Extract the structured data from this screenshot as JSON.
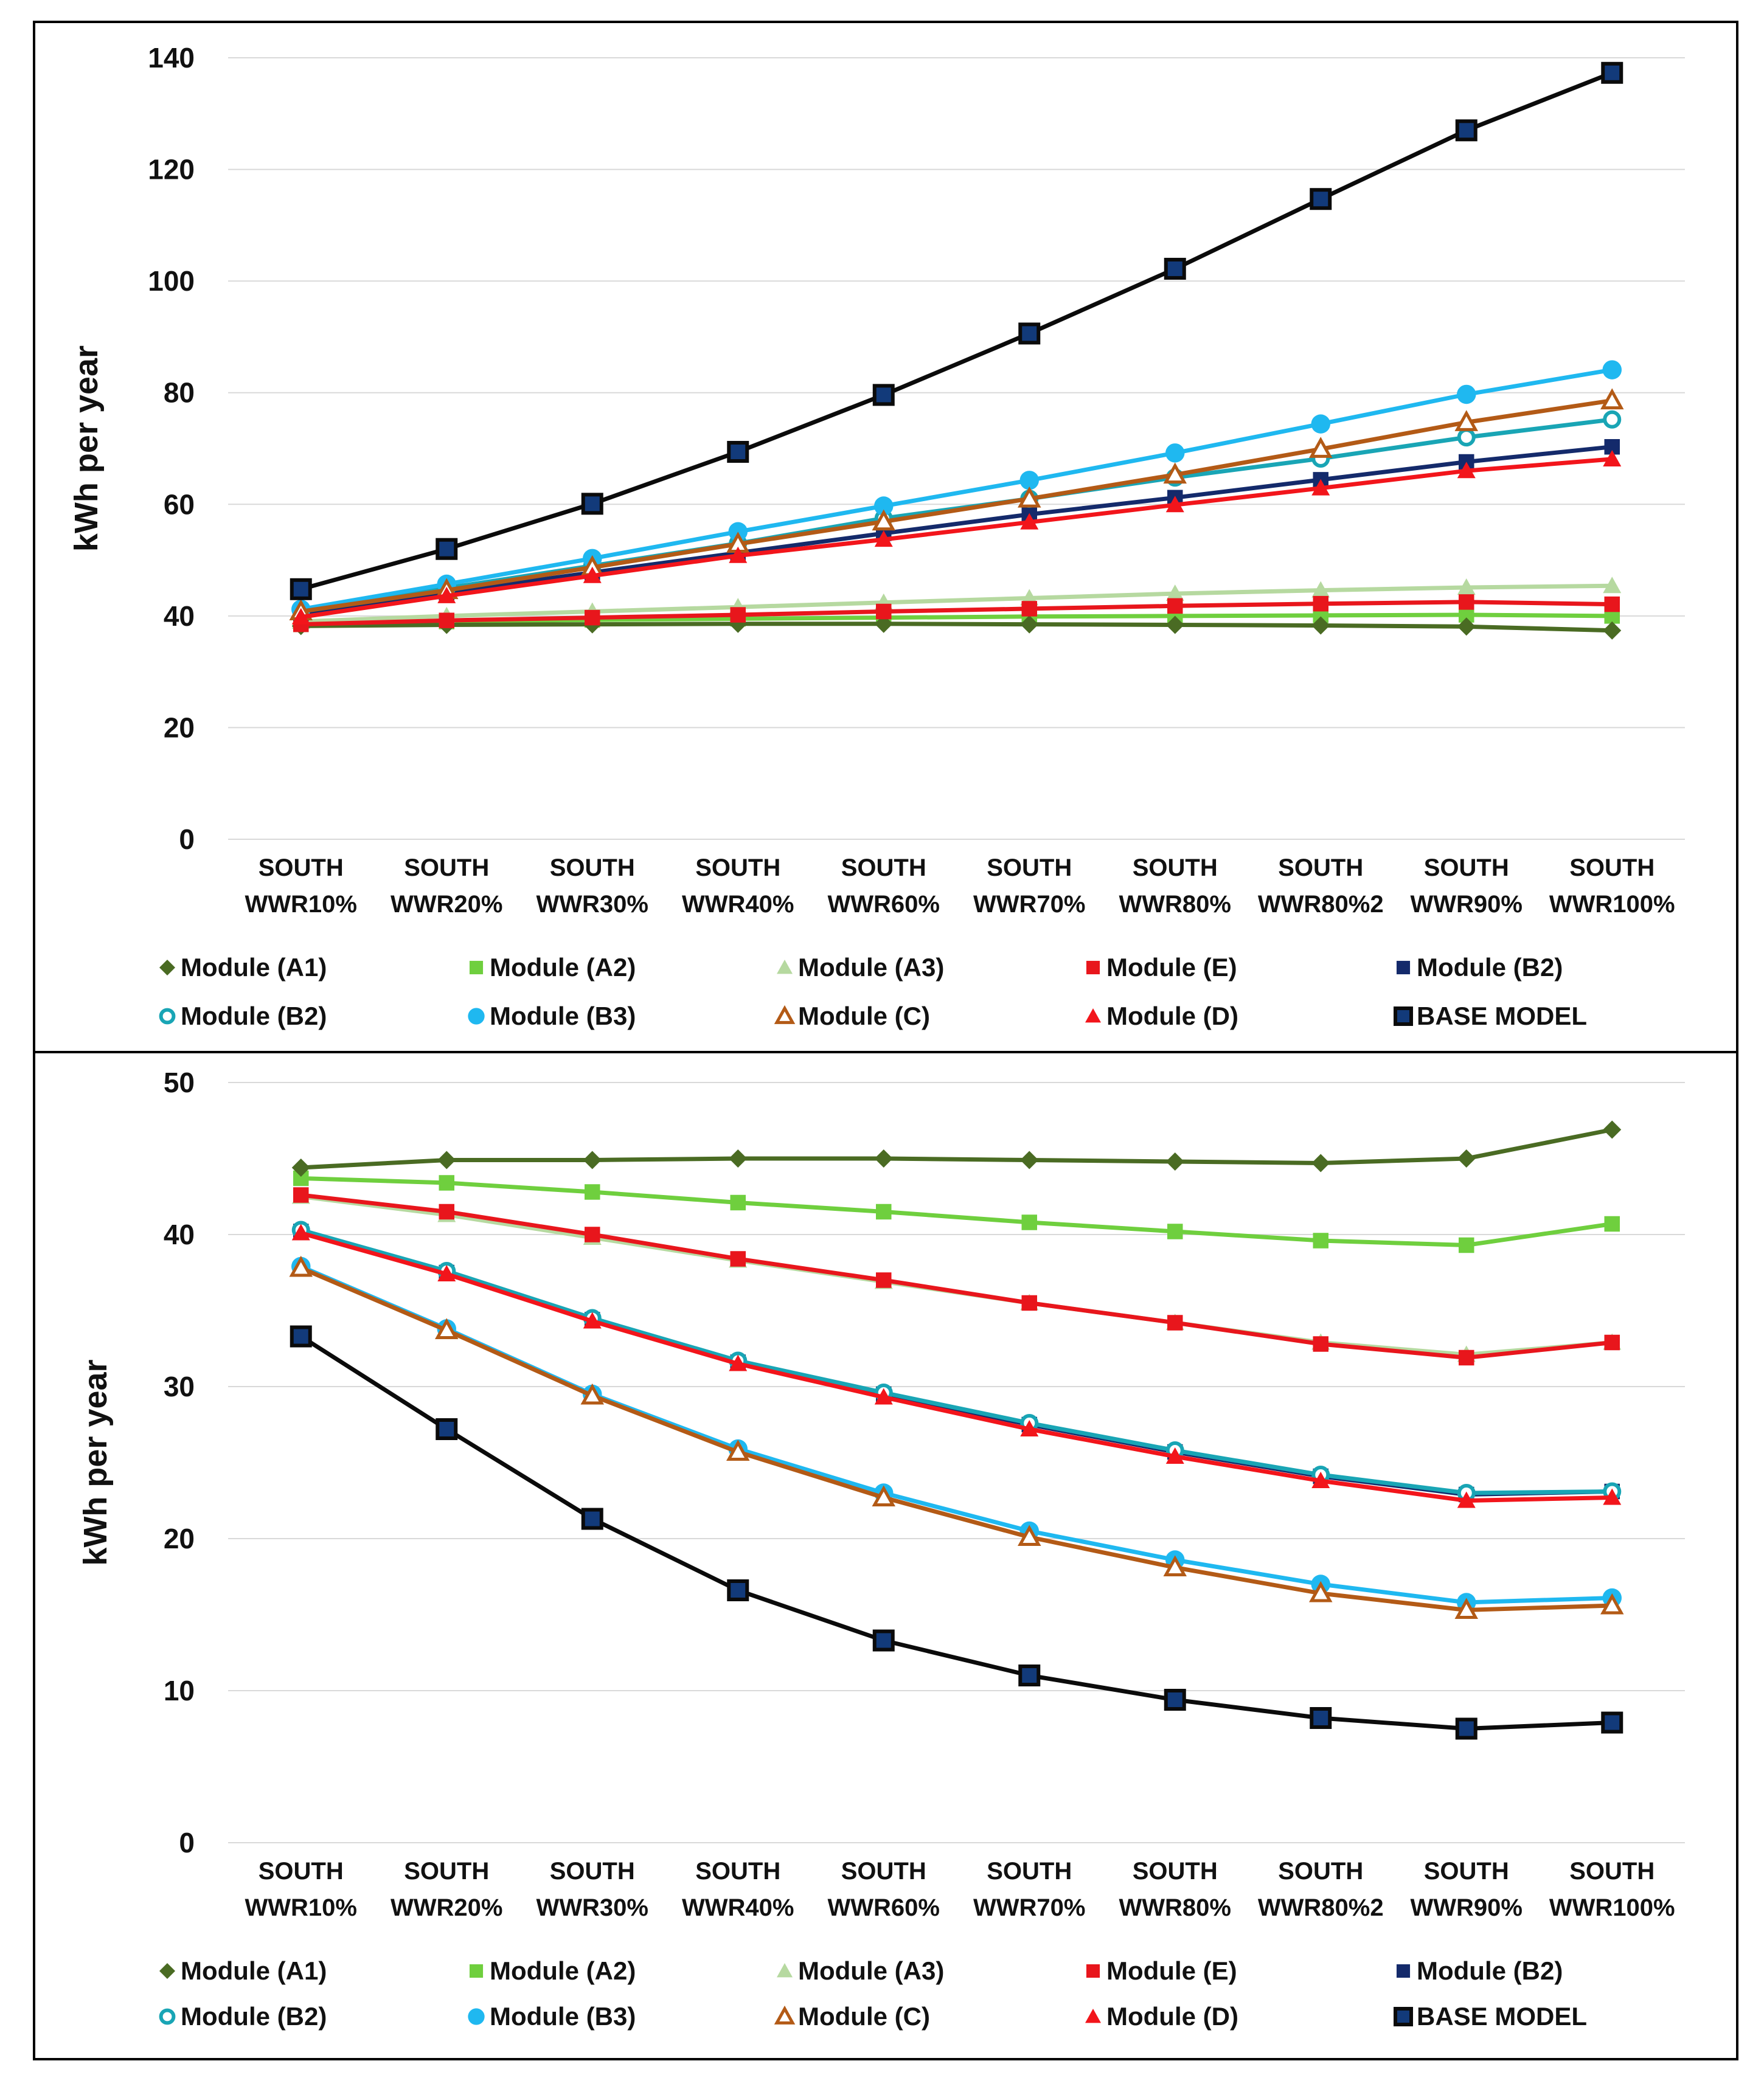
{
  "chart_data": [
    {
      "type": "line",
      "ylabel": "kWh per year",
      "xlabel": "",
      "ylim": [
        0,
        140
      ],
      "yticks": [
        0,
        20,
        40,
        60,
        80,
        100,
        120,
        140
      ],
      "grid": true,
      "legend_position": "bottom",
      "categories": [
        [
          "SOUTH",
          "WWR10%"
        ],
        [
          "SOUTH",
          "WWR20%"
        ],
        [
          "SOUTH",
          "WWR30%"
        ],
        [
          "SOUTH",
          "WWR40%"
        ],
        [
          "SOUTH",
          "WWR60%"
        ],
        [
          "SOUTH",
          "WWR70%"
        ],
        [
          "SOUTH",
          "WWR80%"
        ],
        [
          "SOUTH",
          "WWR80%2"
        ],
        [
          "SOUTH",
          "WWR90%"
        ],
        [
          "SOUTH",
          "WWR100%"
        ]
      ],
      "series": [
        {
          "name": "Module (A1)",
          "color": "#4a6b23",
          "marker": "diamond",
          "values": [
            38.2,
            38.4,
            38.5,
            38.6,
            38.6,
            38.5,
            38.4,
            38.3,
            38.1,
            37.4
          ]
        },
        {
          "name": "Module (A2)",
          "color": "#6fcf3e",
          "marker": "square",
          "values": [
            38.5,
            39.0,
            39.3,
            39.5,
            39.7,
            39.9,
            40.0,
            40.1,
            40.2,
            40.0
          ]
        },
        {
          "name": "Module (A3)",
          "color": "#b6d9a0",
          "marker": "triangle",
          "values": [
            39.0,
            40.0,
            40.8,
            41.6,
            42.4,
            43.2,
            44.0,
            44.6,
            45.1,
            45.4
          ]
        },
        {
          "name": "Module (E)",
          "color": "#e8161c",
          "marker": "square",
          "values": [
            38.5,
            39.2,
            39.7,
            40.2,
            40.8,
            41.3,
            41.8,
            42.2,
            42.5,
            42.1
          ]
        },
        {
          "name": "Module (B2)",
          "color": "#142a6b",
          "marker": "square",
          "values": [
            40.5,
            44.2,
            47.8,
            51.3,
            54.8,
            58.2,
            61.2,
            64.4,
            67.6,
            70.3
          ]
        },
        {
          "name": "Module (B2)",
          "color": "#19a5b5",
          "marker": "ring",
          "values": [
            41.0,
            45.0,
            49.0,
            53.0,
            57.5,
            61.0,
            64.8,
            68.2,
            72.0,
            75.2
          ]
        },
        {
          "name": "Module (B3)",
          "color": "#1fb8f0",
          "marker": "circle",
          "values": [
            41.2,
            45.7,
            50.3,
            55.1,
            59.7,
            64.3,
            69.2,
            74.4,
            79.7,
            84.1
          ]
        },
        {
          "name": "Module (C)",
          "color": "#b35a16",
          "marker": "open-triangle",
          "values": [
            40.8,
            44.6,
            48.7,
            52.9,
            56.9,
            61.0,
            65.3,
            69.9,
            74.7,
            78.6
          ]
        },
        {
          "name": "Module (D)",
          "color": "#f2151b",
          "marker": "triangle",
          "values": [
            39.8,
            43.6,
            47.2,
            50.8,
            53.7,
            56.8,
            59.9,
            62.9,
            66.0,
            68.1
          ]
        },
        {
          "name": "BASE MODEL",
          "color": "#0b0b0b",
          "marker": "square-navy",
          "values": [
            44.8,
            52.0,
            60.1,
            69.4,
            79.6,
            90.6,
            102.2,
            114.7,
            127.0,
            137.3
          ]
        }
      ]
    },
    {
      "type": "line",
      "ylabel": "kWh per year",
      "xlabel": "",
      "ylim": [
        0,
        50
      ],
      "yticks": [
        0,
        10,
        20,
        30,
        40,
        50
      ],
      "grid": true,
      "legend_position": "bottom",
      "categories": [
        [
          "SOUTH",
          "WWR10%"
        ],
        [
          "SOUTH",
          "WWR20%"
        ],
        [
          "SOUTH",
          "WWR30%"
        ],
        [
          "SOUTH",
          "WWR40%"
        ],
        [
          "SOUTH",
          "WWR60%"
        ],
        [
          "SOUTH",
          "WWR70%"
        ],
        [
          "SOUTH",
          "WWR80%"
        ],
        [
          "SOUTH",
          "WWR80%2"
        ],
        [
          "SOUTH",
          "WWR90%"
        ],
        [
          "SOUTH",
          "WWR100%"
        ]
      ],
      "series": [
        {
          "name": "Module (A1)",
          "color": "#4a6b23",
          "marker": "diamond",
          "values": [
            44.4,
            44.9,
            44.9,
            45.0,
            45.0,
            44.9,
            44.8,
            44.7,
            45.0,
            46.9
          ]
        },
        {
          "name": "Module (A2)",
          "color": "#6fcf3e",
          "marker": "square",
          "values": [
            43.7,
            43.4,
            42.8,
            42.1,
            41.5,
            40.8,
            40.2,
            39.6,
            39.3,
            40.7
          ]
        },
        {
          "name": "Module (A3)",
          "color": "#b6d9a0",
          "marker": "triangle",
          "values": [
            42.5,
            41.3,
            39.8,
            38.3,
            36.9,
            35.5,
            34.2,
            32.9,
            32.1,
            32.9
          ]
        },
        {
          "name": "Module (E)",
          "color": "#e8161c",
          "marker": "square",
          "values": [
            42.6,
            41.5,
            40.0,
            38.4,
            37.0,
            35.5,
            34.2,
            32.8,
            31.9,
            32.9
          ]
        },
        {
          "name": "Module (B2)",
          "color": "#142a6b",
          "marker": "square",
          "values": [
            40.2,
            37.5,
            34.4,
            31.6,
            29.5,
            27.5,
            25.7,
            24.1,
            22.9,
            23.1
          ]
        },
        {
          "name": "Module (B2)",
          "color": "#19a5b5",
          "marker": "ring",
          "values": [
            40.3,
            37.6,
            34.5,
            31.7,
            29.6,
            27.6,
            25.8,
            24.2,
            23.0,
            23.1
          ]
        },
        {
          "name": "Module (B3)",
          "color": "#1fb8f0",
          "marker": "circle",
          "values": [
            37.9,
            33.8,
            29.5,
            25.9,
            23.0,
            20.5,
            18.6,
            17.0,
            15.8,
            16.1
          ]
        },
        {
          "name": "Module (C)",
          "color": "#b35a16",
          "marker": "open-triangle",
          "values": [
            37.8,
            33.7,
            29.4,
            25.7,
            22.7,
            20.1,
            18.1,
            16.4,
            15.3,
            15.6
          ]
        },
        {
          "name": "Module (D)",
          "color": "#f2151b",
          "marker": "triangle",
          "values": [
            40.1,
            37.4,
            34.3,
            31.5,
            29.3,
            27.2,
            25.4,
            23.8,
            22.5,
            22.7
          ]
        },
        {
          "name": "BASE MODEL",
          "color": "#0b0b0b",
          "marker": "square-navy",
          "values": [
            33.3,
            27.2,
            21.3,
            16.6,
            13.3,
            11.0,
            9.4,
            8.2,
            7.5,
            7.9
          ]
        }
      ]
    }
  ]
}
